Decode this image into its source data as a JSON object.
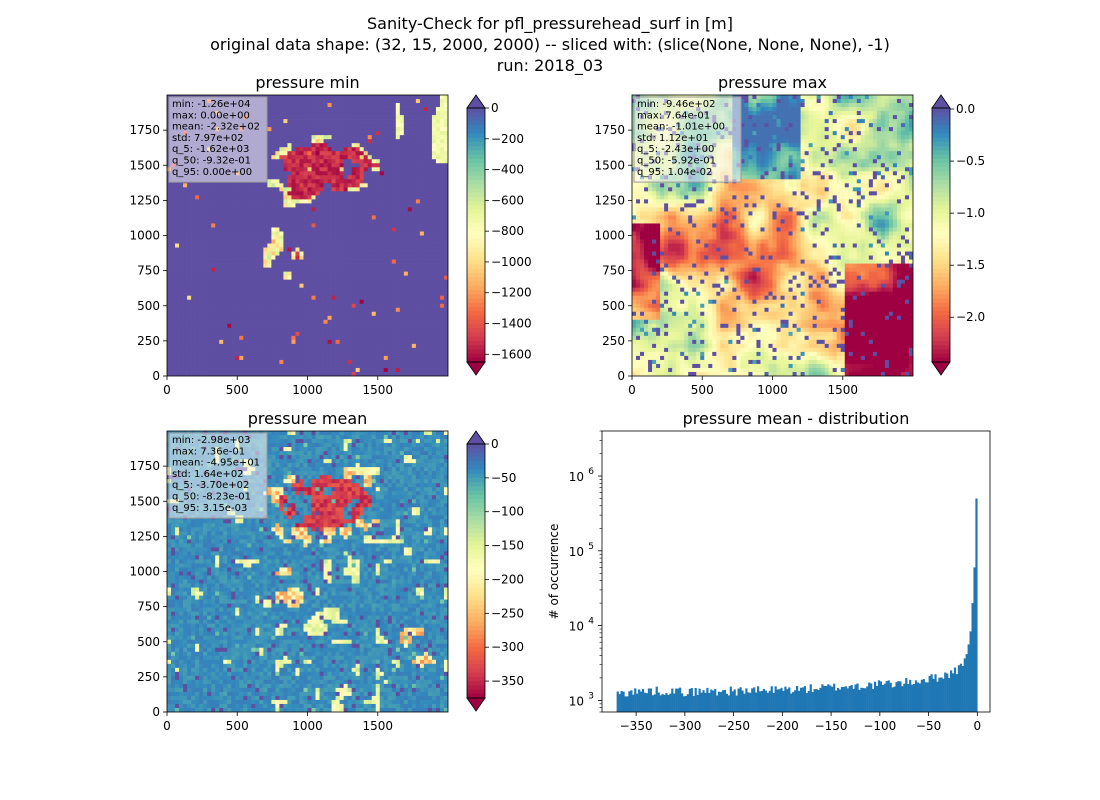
{
  "figure": {
    "title_lines": [
      "Sanity-Check for pfl_pressurehead_surf in [m]",
      "original data shape: (32, 15, 2000, 2000) -- sliced with: (slice(None, None, None), -1)",
      "run: 2018_03"
    ]
  },
  "colors": {
    "spectral": [
      "#9e0142",
      "#d53e4f",
      "#f46d43",
      "#fdae61",
      "#fee08b",
      "#ffffbf",
      "#e6f598",
      "#abdda4",
      "#66c2a5",
      "#3288bd",
      "#5e4fa2"
    ],
    "hist_bar": "#1f77b4"
  },
  "chart_data": [
    {
      "type": "heatmap",
      "title": "pressure min",
      "colormap": "Spectral",
      "x_ticks": [
        "0",
        "500",
        "1000",
        "1500"
      ],
      "y_ticks": [
        "0",
        "250",
        "500",
        "750",
        "1000",
        "1250",
        "1500",
        "1750"
      ],
      "xlim": [
        0,
        2000
      ],
      "ylim": [
        0,
        2000
      ],
      "color_range": [
        -1650,
        0
      ],
      "colorbar_ticks": [
        "0",
        "−200",
        "−400",
        "−600",
        "−800",
        "−1000",
        "−1200",
        "−1400",
        "−1600"
      ],
      "colorbar_tick_values": [
        0,
        -200,
        -400,
        -600,
        -800,
        -1000,
        -1200,
        -1400,
        -1600
      ],
      "colorbar_extend": "both",
      "stats": [
        "min: -1.26e+04",
        "max: 0.00e+00",
        "mean: -2.32e+02",
        "std: 7.97e+02",
        "q_5: -1.62e+03",
        "q_50: -9.32e-01",
        "q_95: 0.00e+00"
      ]
    },
    {
      "type": "heatmap",
      "title": "pressure max",
      "colormap": "Spectral",
      "x_ticks": [
        "0",
        "500",
        "1000",
        "1500"
      ],
      "y_ticks": [
        "0",
        "250",
        "500",
        "750",
        "1000",
        "1250",
        "1500",
        "1750"
      ],
      "xlim": [
        0,
        2000
      ],
      "ylim": [
        0,
        2000
      ],
      "color_range": [
        -2.43,
        0.01
      ],
      "colorbar_ticks": [
        "0.0",
        "−0.5",
        "−1.0",
        "−1.5",
        "−2.0"
      ],
      "colorbar_tick_values": [
        0,
        -0.5,
        -1.0,
        -1.5,
        -2.0
      ],
      "colorbar_extend": "both",
      "stats": [
        "min: -9.46e+02",
        "max: 7.64e-01",
        "mean: -1.01e+00",
        "std: 1.12e+01",
        "q_5: -2.43e+00",
        "q_50: -5.92e-01",
        "q_95: 1.04e-02"
      ]
    },
    {
      "type": "heatmap",
      "title": "pressure mean",
      "colormap": "Spectral",
      "x_ticks": [
        "0",
        "500",
        "1000",
        "1500"
      ],
      "y_ticks": [
        "0",
        "250",
        "500",
        "750",
        "1000",
        "1250",
        "1500",
        "1750"
      ],
      "xlim": [
        0,
        2000
      ],
      "ylim": [
        0,
        2000
      ],
      "color_range": [
        -375,
        0
      ],
      "colorbar_ticks": [
        "0",
        "−50",
        "−100",
        "−150",
        "−200",
        "−250",
        "−300",
        "−350"
      ],
      "colorbar_tick_values": [
        0,
        -50,
        -100,
        -150,
        -200,
        -250,
        -300,
        -350
      ],
      "colorbar_extend": "both",
      "stats": [
        "min: -2.98e+03",
        "max: 7.36e-01",
        "mean: -4.95e+01",
        "std: 1.64e+02",
        "q_5: -3.70e+02",
        "q_50: -8.23e-01",
        "q_95: 3.15e-03"
      ]
    },
    {
      "type": "bar",
      "title": "pressure mean - distribution",
      "ylabel": "# of occurrence",
      "xlabel": "",
      "yscale": "log",
      "xlim": [
        -385,
        13
      ],
      "ylim": [
        700,
        4000000
      ],
      "x_ticks": [
        "−350",
        "−300",
        "−250",
        "−200",
        "−150",
        "−100",
        "−50",
        "0"
      ],
      "x_tick_values": [
        -350,
        -300,
        -250,
        -200,
        -150,
        -100,
        -50,
        0
      ],
      "y_tick_labels": [
        {
          "base": "10",
          "exp": "3"
        },
        {
          "base": "10",
          "exp": "4"
        },
        {
          "base": "10",
          "exp": "5"
        },
        {
          "base": "10",
          "exp": "6"
        }
      ],
      "y_tick_values": [
        1000,
        10000,
        100000,
        1000000
      ],
      "bins": {
        "start": -370,
        "end": 0,
        "count": 185
      },
      "values_profile": [
        [
          -370,
          1200
        ],
        [
          -360,
          1300
        ],
        [
          -340,
          1330
        ],
        [
          -320,
          1360
        ],
        [
          -300,
          1300
        ],
        [
          -280,
          1330
        ],
        [
          -250,
          1350
        ],
        [
          -220,
          1360
        ],
        [
          -200,
          1400
        ],
        [
          -180,
          1420
        ],
        [
          -150,
          1500
        ],
        [
          -130,
          1550
        ],
        [
          -110,
          1600
        ],
        [
          -100,
          1650
        ],
        [
          -80,
          1700
        ],
        [
          -60,
          1850
        ],
        [
          -45,
          2000
        ],
        [
          -35,
          2150
        ],
        [
          -25,
          2400
        ],
        [
          -18,
          2700
        ],
        [
          -14,
          3300
        ],
        [
          -10,
          4500
        ],
        [
          -8,
          7000
        ],
        [
          -6,
          10000
        ],
        [
          -5,
          20000
        ],
        [
          -4,
          40000
        ],
        [
          -3,
          60000
        ],
        [
          -2,
          100000
        ],
        [
          -1,
          500000
        ],
        [
          0,
          2500000
        ]
      ]
    }
  ]
}
